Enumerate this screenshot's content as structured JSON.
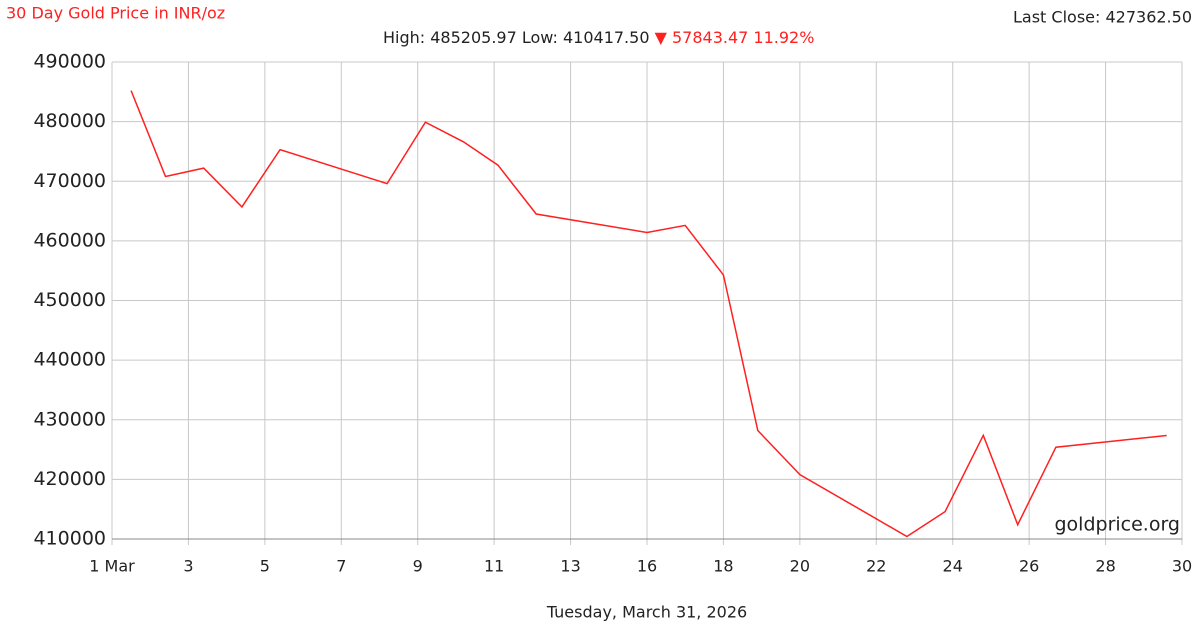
{
  "chart_data": {
    "type": "line",
    "title": "30 Day Gold Price in INR/oz",
    "last_close": "Last Close: 427362.50",
    "stats": "High: 485205.97 Low: 410417.50",
    "change": "▼ 57843.47 11.92%",
    "watermark": "goldprice.org",
    "x_label": "Tuesday, March 31, 2026",
    "x": [
      1.5,
      2.4,
      3.4,
      4.4,
      5.4,
      8.2,
      9.2,
      10.2,
      11.1,
      12.1,
      16.0,
      17.0,
      18.0,
      18.9,
      20.0,
      22.8,
      23.8,
      24.8,
      25.7,
      26.7,
      29.6
    ],
    "series": [
      {
        "name": "Gold Price",
        "color": "#ff2020",
        "values": [
          485206,
          470800,
          472200,
          465700,
          475300,
          469600,
          479900,
          476600,
          472700,
          464500,
          461400,
          462600,
          454300,
          428200,
          420800,
          410418,
          414600,
          427400,
          412400,
          425400,
          427363
        ]
      }
    ],
    "xlim": [
      1,
      30
    ],
    "xticks": [
      {
        "value": 1,
        "label": "1 Mar"
      },
      3,
      5,
      7,
      9,
      11,
      13,
      16,
      18,
      20,
      22,
      24,
      26,
      28,
      30
    ],
    "ylim": [
      410000,
      490000
    ],
    "yticks": [
      410000,
      420000,
      430000,
      440000,
      450000,
      460000,
      470000,
      480000,
      490000
    ],
    "grid": true
  }
}
